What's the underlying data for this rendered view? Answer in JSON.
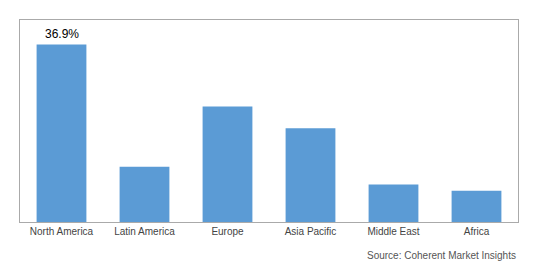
{
  "chart_data": {
    "type": "bar",
    "categories": [
      "North America",
      "Latin America",
      "Europe",
      "Asia Pacific",
      "Middle East",
      "Africa"
    ],
    "values": [
      36.9,
      11.5,
      24.0,
      19.5,
      7.8,
      6.5
    ],
    "color": "#5B9BD5",
    "ylim": [
      0,
      42
    ],
    "yticks": [],
    "grid": false,
    "tick_labels": "x",
    "annotations": [
      {
        "text": "36.9%",
        "x": "North America",
        "y": 36.9
      }
    ],
    "source": "Source: Coherent Market Insights"
  }
}
